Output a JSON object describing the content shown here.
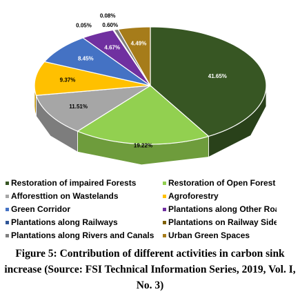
{
  "chart_data": {
    "type": "pie3d",
    "caption": "Figure 5: Contribution of different activities in carbon sink increase (Source: FSI Technical Information Series, 2019, Vol. I, No. 3)",
    "series": [
      {
        "name": "Restoration of impaired Forests",
        "color": "#375623",
        "values": [
          41.65
        ],
        "value_labels": [
          "41.65%"
        ]
      },
      {
        "name": "Restoration of Open Forest",
        "color": "#92d050",
        "values": [
          19.22
        ],
        "value_labels": [
          "19.22%"
        ]
      },
      {
        "name": "Afforesttion on Wastelands",
        "color": "#a6a6a6",
        "values": [
          11.51
        ],
        "value_labels": [
          "11.51%"
        ]
      },
      {
        "name": "Agroforestry",
        "color": "#ffc000",
        "values": [
          9.37
        ],
        "value_labels": [
          "9.37%"
        ]
      },
      {
        "name": "Green Corridor",
        "color": "#4472c4",
        "values": [
          8.45
        ],
        "value_labels": [
          "8.45%"
        ]
      },
      {
        "name": "Plantations along Other Roads",
        "color": "#7030a0",
        "values": [
          4.67
        ],
        "value_labels": [
          "4.67%"
        ]
      },
      {
        "name": "Plantations along Railways",
        "color": "#2f5597",
        "values": [
          0.05
        ],
        "value_labels": [
          "0.05%"
        ]
      },
      {
        "name": "Plantations on Railway Sides",
        "color": "#7f6000",
        "values": [
          0.08
        ],
        "value_labels": [
          "0.08%"
        ]
      },
      {
        "name": "Plantations along Rivers and Canals",
        "color": "#7f7f7f",
        "values": [
          0.6
        ],
        "value_labels": [
          "0.60%"
        ]
      },
      {
        "name": "Urban Green Spaces",
        "color": "#a67c1a",
        "values": [
          4.49
        ],
        "value_labels": [
          "4.49%"
        ]
      }
    ]
  }
}
